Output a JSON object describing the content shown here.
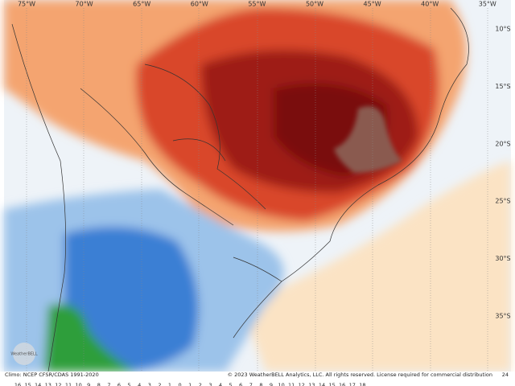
{
  "map": {
    "longitude_labels": [
      "75°W",
      "70°W",
      "65°W",
      "60°W",
      "55°W",
      "50°W",
      "45°W",
      "40°W",
      "35°W"
    ],
    "latitude_labels": [
      "10°S",
      "15°S",
      "20°S",
      "25°S",
      "30°S",
      "35°S"
    ],
    "logo": "WeatherBELL",
    "footer": {
      "climo": "Climo: NCEP CFSR/CDAS 1991-2020",
      "copyright": "© 2023 WeatherBELL Analytics, LLC. All rights reserved. License required for commercial distribution",
      "frame": "24"
    },
    "colorbar_labels": [
      "16",
      "15",
      "14",
      "13",
      "12",
      "11",
      "10",
      "9",
      "8",
      "7",
      "6",
      "5",
      "4",
      "3",
      "2",
      "1",
      "0",
      "1",
      "2",
      "3",
      "4",
      "5",
      "6",
      "7",
      "8",
      "9",
      "10",
      "11",
      "12",
      "13",
      "14",
      "15",
      "16",
      "17",
      "18"
    ]
  }
}
